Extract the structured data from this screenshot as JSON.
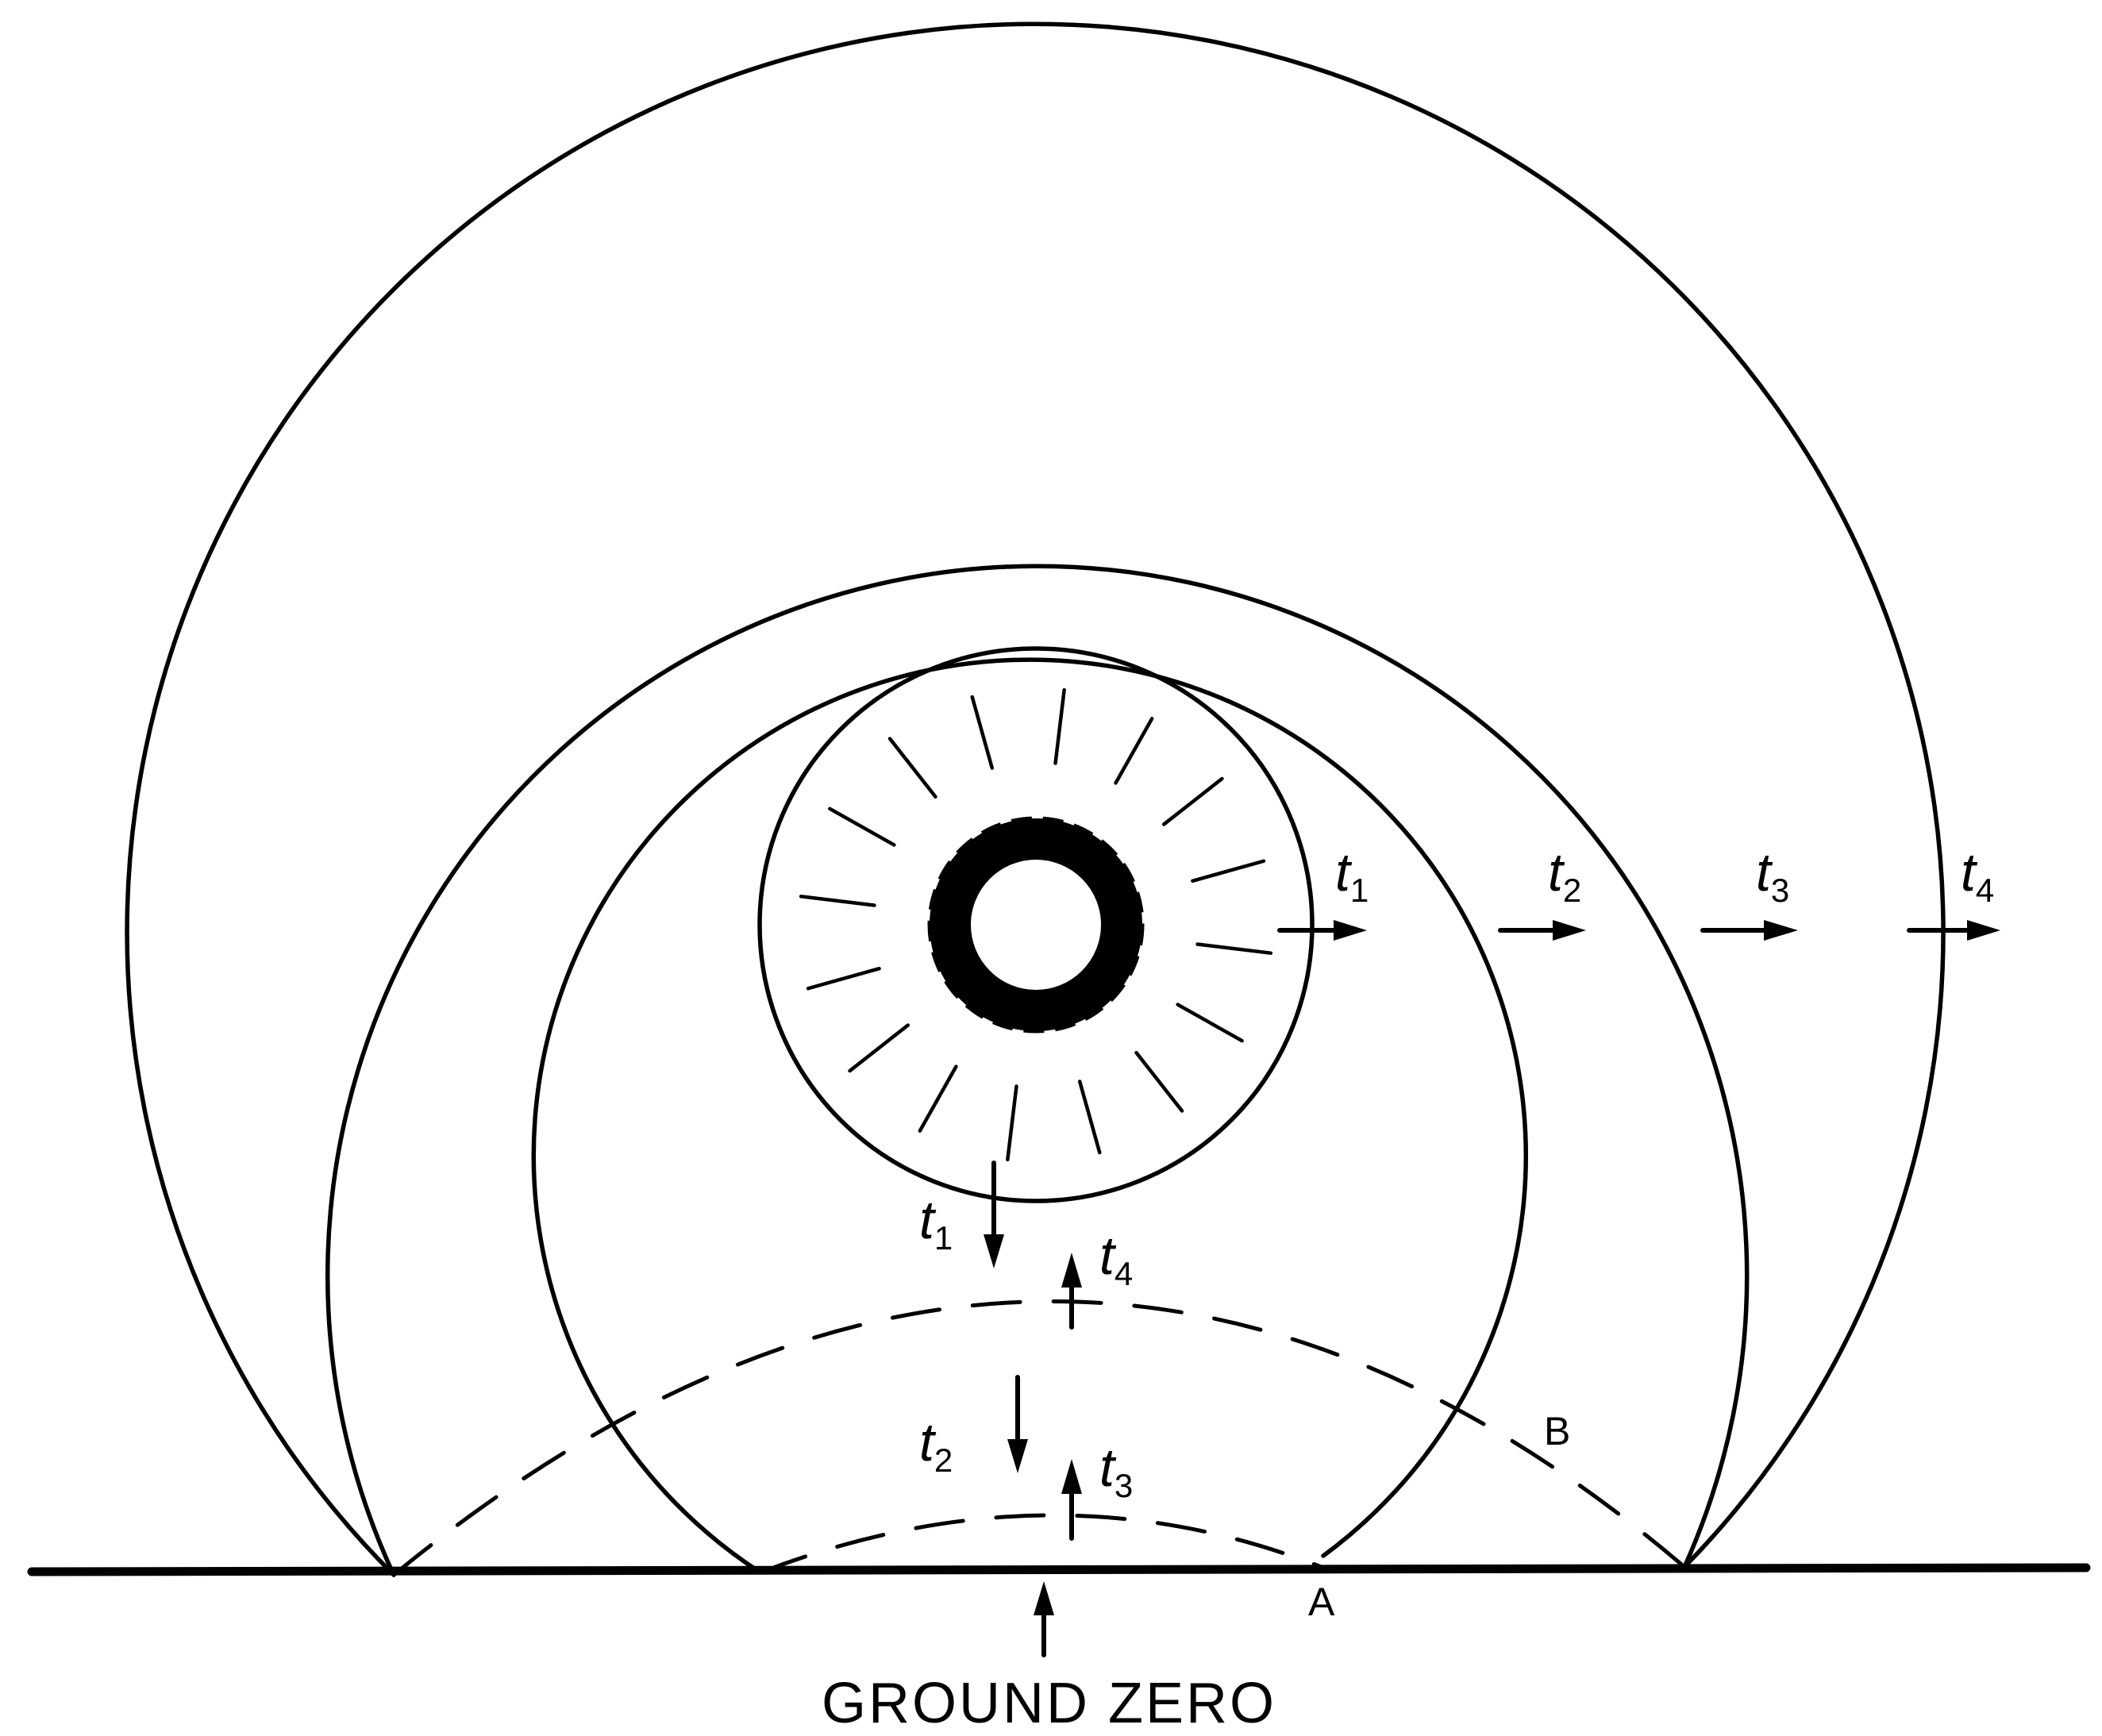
{
  "fronts": [
    {
      "t": "t",
      "sub": "1"
    },
    {
      "t": "t",
      "sub": "2"
    },
    {
      "t": "t",
      "sub": "3"
    },
    {
      "t": "t",
      "sub": "4"
    }
  ],
  "down_labels": [
    {
      "t": "t",
      "sub": "1"
    },
    {
      "t": "t",
      "sub": "2"
    }
  ],
  "up_labels": [
    {
      "t": "t",
      "sub": "4"
    },
    {
      "t": "t",
      "sub": "3"
    }
  ],
  "points": {
    "a": "A",
    "b": "B"
  },
  "ground_zero": "GROUND ZERO"
}
